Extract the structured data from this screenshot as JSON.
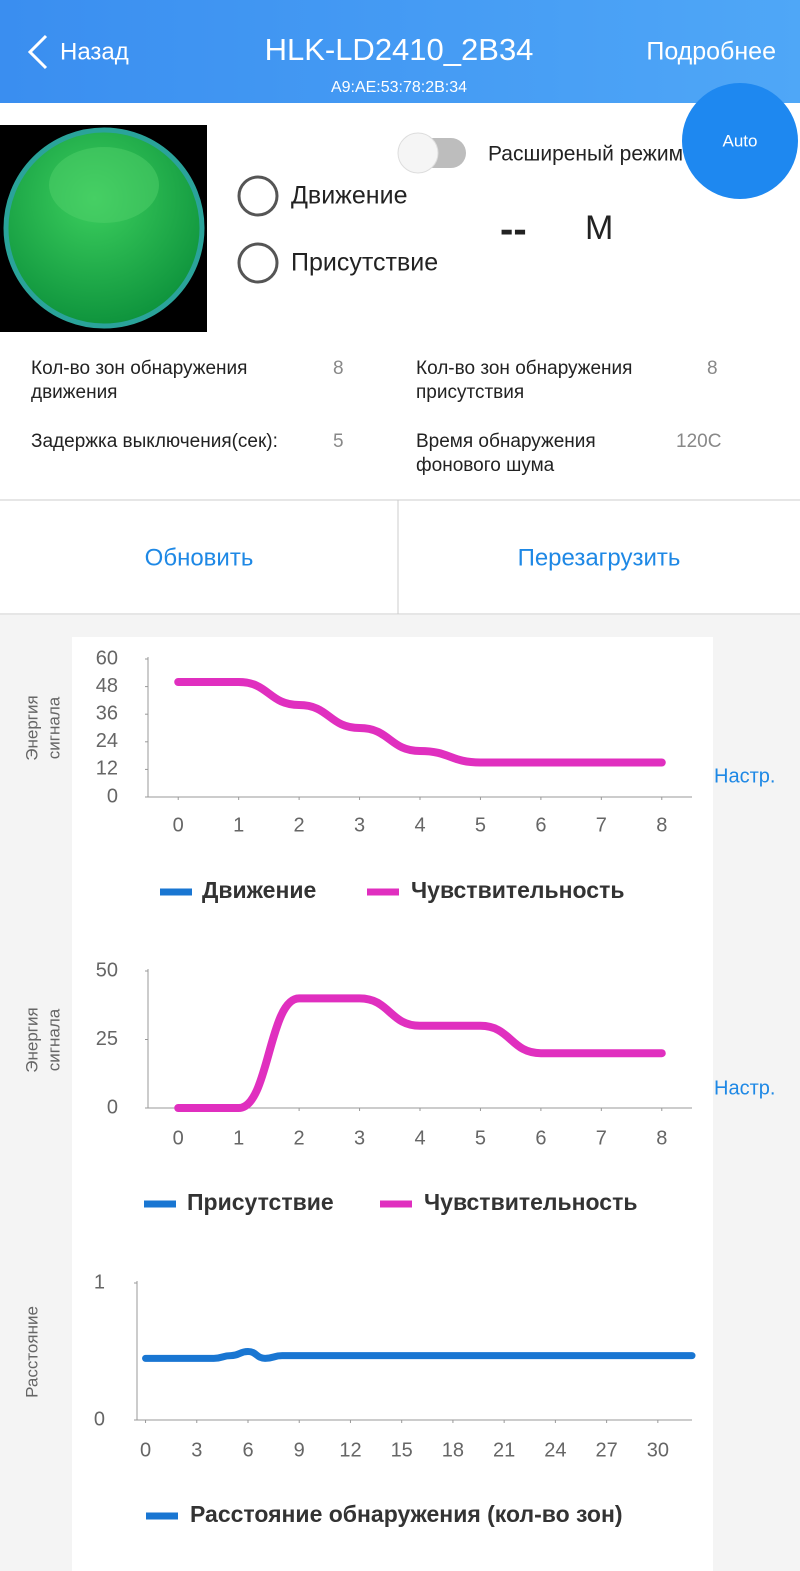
{
  "header": {
    "back": "Назад",
    "title": "HLK-LD2410_2B34",
    "subtitle": "A9:AE:53:78:2B:34",
    "details": "Подробнее"
  },
  "auto_button": "Auto",
  "extended_mode": "Расширеный режим",
  "status": {
    "motion": "Движение",
    "presence": "Присутствие",
    "distance": "--",
    "unit": "M"
  },
  "info": [
    {
      "label": [
        "Кол-во зон обнаружения",
        "движения"
      ],
      "value": "8"
    },
    {
      "label": [
        "Кол-во зон обнаружения",
        "присутствия"
      ],
      "value": "8"
    },
    {
      "label": [
        "Задержка выключения(сек):"
      ],
      "value": "5"
    },
    {
      "label": [
        "Время обнаружения",
        "фонового шума"
      ],
      "value": "120С"
    }
  ],
  "buttons": [
    "Обновить",
    "Перезагрузить"
  ],
  "charts": [
    {
      "type": "line",
      "y_label": [
        "Энергия",
        "сигнала"
      ],
      "settings": "Настр.",
      "x": [
        0,
        1,
        2,
        3,
        4,
        5,
        6,
        7,
        8
      ],
      "xlim": [
        -0.5,
        8.5
      ],
      "xticks": [
        0,
        1,
        2,
        3,
        4,
        5,
        6,
        7,
        8
      ],
      "ylim": [
        0,
        60
      ],
      "yticks": [
        0,
        12,
        24,
        36,
        48,
        60
      ],
      "series": [
        {
          "name": "Движение",
          "color": "#1976d2",
          "values": [
            null,
            null,
            null,
            null,
            null,
            null,
            null,
            null,
            null
          ]
        },
        {
          "name": "Чувствительность",
          "color": "#e02fbf",
          "values": [
            50,
            50,
            40,
            30,
            20,
            15,
            15,
            15,
            15
          ]
        }
      ]
    },
    {
      "type": "line",
      "y_label": [
        "Энергия",
        "сигнала"
      ],
      "settings": "Настр.",
      "x": [
        0,
        1,
        2,
        3,
        4,
        5,
        6,
        7,
        8
      ],
      "xlim": [
        -0.5,
        8.5
      ],
      "xticks": [
        0,
        1,
        2,
        3,
        4,
        5,
        6,
        7,
        8
      ],
      "ylim": [
        0,
        50
      ],
      "yticks": [
        0,
        25,
        50
      ],
      "series": [
        {
          "name": "Присутствие",
          "color": "#1976d2",
          "values": [
            null,
            null,
            null,
            null,
            null,
            null,
            null,
            null,
            null
          ]
        },
        {
          "name": "Чувствительность",
          "color": "#e02fbf",
          "values": [
            0,
            0,
            40,
            40,
            30,
            30,
            20,
            20,
            20
          ]
        }
      ]
    },
    {
      "type": "line",
      "y_label": [
        "Расстояние"
      ],
      "x": [
        0,
        4,
        5,
        6,
        7,
        8,
        32
      ],
      "xlim": [
        -0.5,
        32
      ],
      "xticks": [
        0,
        3,
        6,
        9,
        12,
        15,
        18,
        21,
        24,
        27,
        30
      ],
      "ylim": [
        0,
        1
      ],
      "yticks": [
        0,
        1
      ],
      "series": [
        {
          "name": "Расстояние обнаружения (кол-во зон)",
          "color": "#1976d2",
          "values": [
            0.45,
            0.45,
            0.47,
            0.5,
            0.45,
            0.47,
            0.47
          ]
        }
      ]
    }
  ]
}
